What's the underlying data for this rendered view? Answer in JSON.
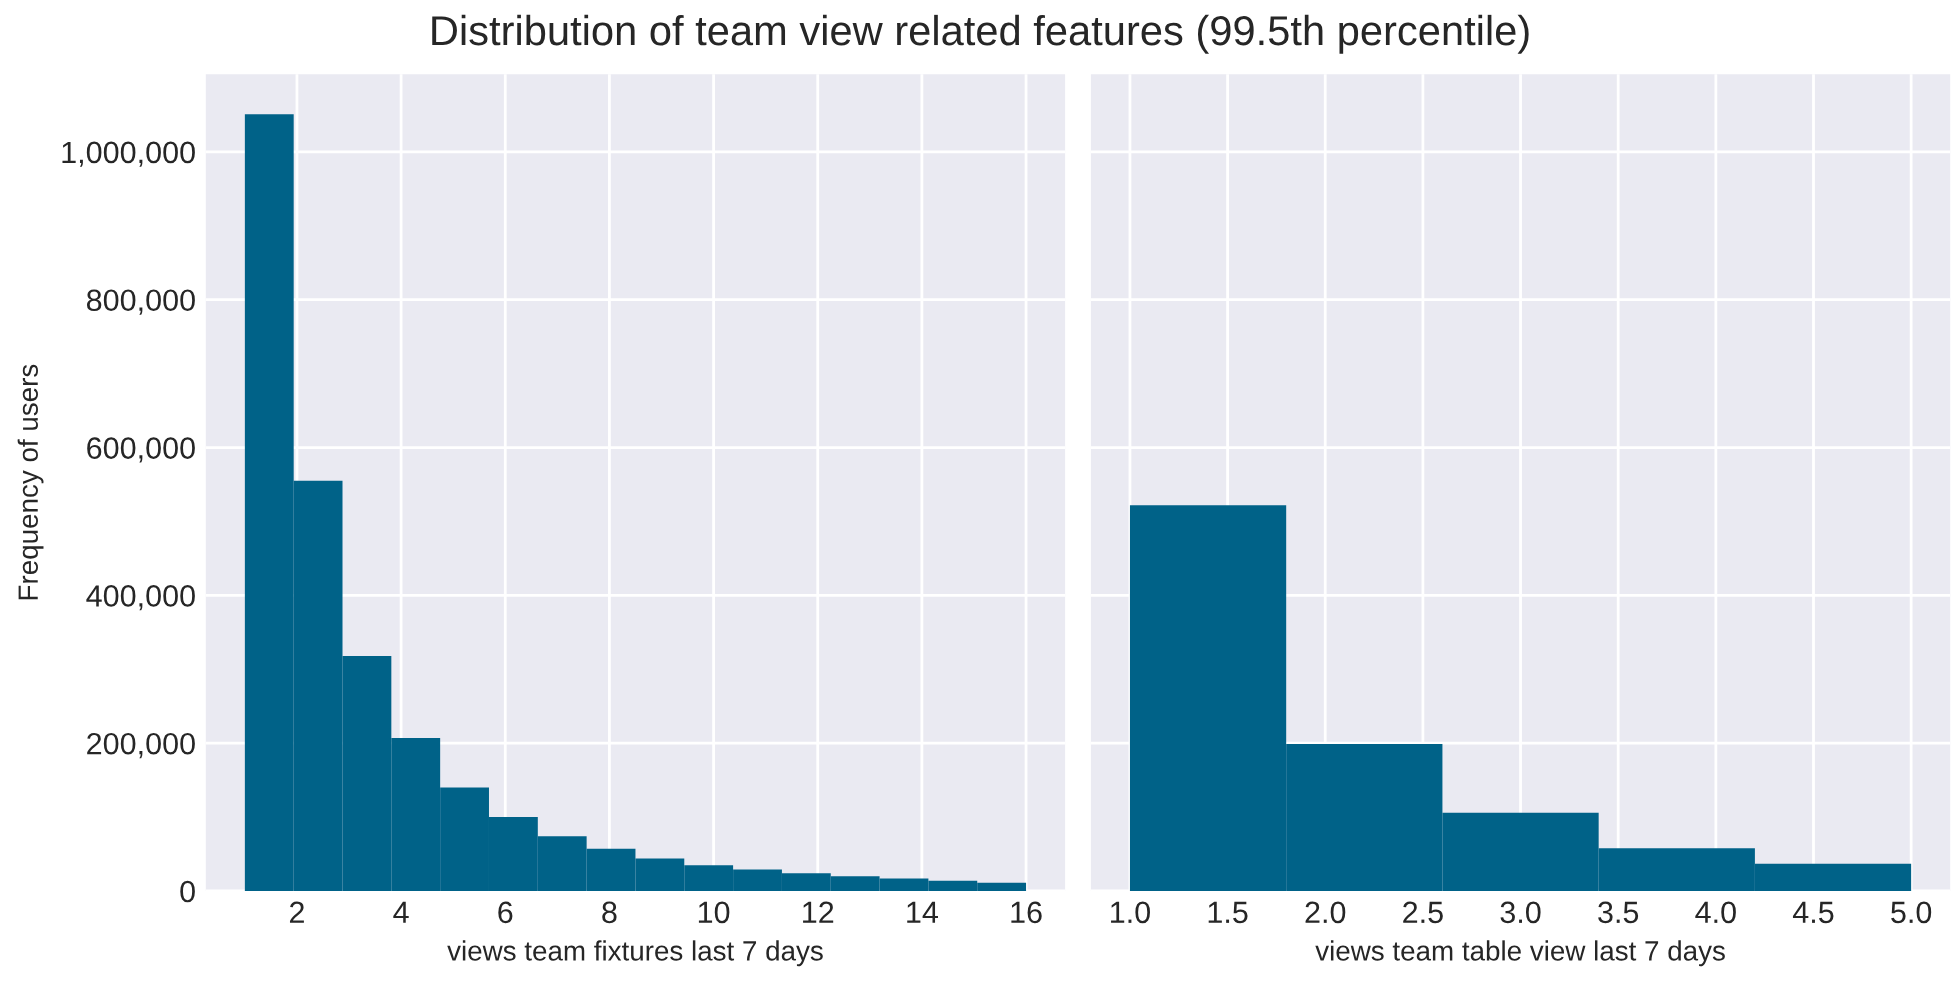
{
  "chart_data": [
    {
      "type": "histogram",
      "title": "Distribution of team view related features (99.5th percentile)",
      "xlabel": "views team fixtures last 7 days",
      "ylabel": "Frequency of users",
      "bins": [
        1,
        1.9375,
        2.875,
        3.8125,
        4.75,
        5.6875,
        6.625,
        7.5625,
        8.5,
        9.4375,
        10.375,
        11.3125,
        12.25,
        13.1875,
        14.125,
        15.0625,
        16
      ],
      "values": [
        1051000,
        555000,
        318000,
        207000,
        140000,
        100000,
        74000,
        57000,
        44000,
        35000,
        29000,
        24000,
        20000,
        17000,
        14000,
        11000
      ],
      "color": "#006288",
      "xlim": [
        0.25,
        16.75
      ],
      "xticks": [
        2,
        4,
        6,
        8,
        10,
        12,
        14,
        16
      ],
      "ylim": [
        0,
        1105000
      ],
      "yticks": [
        {
          "value": 0,
          "label": "0"
        },
        {
          "value": 200000,
          "label": "200,000"
        },
        {
          "value": 400000,
          "label": "400,000"
        },
        {
          "value": 600000,
          "label": "600,000"
        },
        {
          "value": 800000,
          "label": "800,000"
        },
        {
          "value": 1000000,
          "label": "1,000,000"
        }
      ],
      "grid": true
    },
    {
      "type": "histogram",
      "xlabel": "views team table view last 7 days",
      "bins": [
        1,
        1.8,
        2.6,
        3.4,
        4.2,
        5
      ],
      "values": [
        522000,
        199000,
        106000,
        58000,
        37000
      ],
      "color": "#006288",
      "xlim": [
        0.8,
        5.2
      ],
      "xticks": [
        {
          "value": 1,
          "label": "1.0"
        },
        {
          "value": 1.5,
          "label": "1.5"
        },
        {
          "value": 2,
          "label": "2.0"
        },
        {
          "value": 2.5,
          "label": "2.5"
        },
        {
          "value": 3,
          "label": "3.0"
        },
        {
          "value": 3.5,
          "label": "3.5"
        },
        {
          "value": 4,
          "label": "4.0"
        },
        {
          "value": 4.5,
          "label": "4.5"
        },
        {
          "value": 5,
          "label": "5.0"
        }
      ],
      "ylim": [
        0,
        1105000
      ],
      "yticks": [
        0,
        200000,
        400000,
        600000,
        800000,
        1000000
      ],
      "tick_labels": "x",
      "grid": true
    }
  ]
}
